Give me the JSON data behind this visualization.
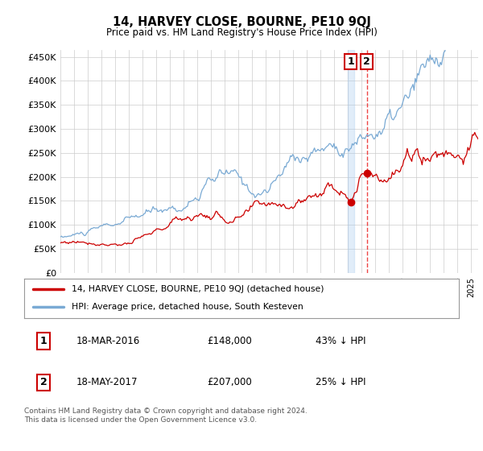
{
  "title": "14, HARVEY CLOSE, BOURNE, PE10 9QJ",
  "subtitle": "Price paid vs. HM Land Registry's House Price Index (HPI)",
  "ylabel_ticks": [
    "£0",
    "£50K",
    "£100K",
    "£150K",
    "£200K",
    "£250K",
    "£300K",
    "£350K",
    "£400K",
    "£450K"
  ],
  "ytick_values": [
    0,
    50000,
    100000,
    150000,
    200000,
    250000,
    300000,
    350000,
    400000,
    450000
  ],
  "ylim": [
    0,
    465000
  ],
  "xlim_start": 1995.0,
  "xlim_end": 2025.5,
  "hpi_color": "#7aaad4",
  "price_color": "#cc0000",
  "marker1_date": 2016.21,
  "marker2_date": 2017.38,
  "marker1_price": 148000,
  "marker2_price": 207000,
  "legend_label1": "14, HARVEY CLOSE, BOURNE, PE10 9QJ (detached house)",
  "legend_label2": "HPI: Average price, detached house, South Kesteven",
  "table_row1": [
    "1",
    "18-MAR-2016",
    "£148,000",
    "43% ↓ HPI"
  ],
  "table_row2": [
    "2",
    "18-MAY-2017",
    "£207,000",
    "25% ↓ HPI"
  ],
  "footer": "Contains HM Land Registry data © Crown copyright and database right 2024.\nThis data is licensed under the Open Government Licence v3.0.",
  "background_color": "#ffffff",
  "grid_color": "#cccccc"
}
